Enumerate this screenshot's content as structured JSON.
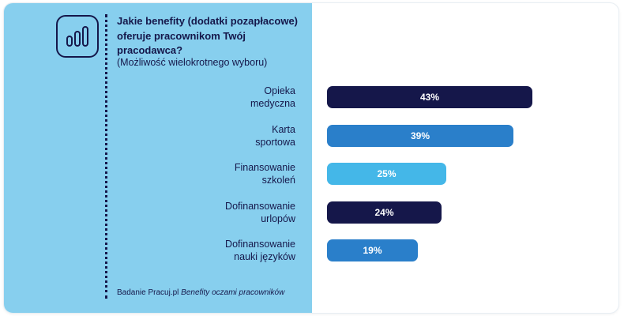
{
  "header": {
    "question": "Jakie benefity (dodatki pozapłacowe) oferuje pracownikom Twój pracodawca?",
    "note": "(Możliwość wielokrotnego wyboru)",
    "icon": "bar-chart-icon"
  },
  "source": {
    "prefix": "Badanie Pracuj.pl",
    "title": "Benefity oczami pracowników"
  },
  "colors": {
    "panel": "#87cfee",
    "text": "#15174a",
    "navy": "#15174a",
    "blue": "#2a7fca",
    "light": "#44b7e8"
  },
  "chart_data": {
    "type": "bar",
    "orientation": "horizontal",
    "categories": [
      [
        "Opieka",
        "medyczna"
      ],
      [
        "Karta",
        "sportowa"
      ],
      [
        "Finansowanie",
        "szkoleń"
      ],
      [
        "Dofinansowanie",
        "urlopów"
      ],
      [
        "Dofinansowanie",
        "nauki języków"
      ]
    ],
    "values": [
      43,
      39,
      25,
      24,
      19
    ],
    "value_labels": [
      "43%",
      "39%",
      "25%",
      "24%",
      "19%"
    ],
    "bar_colors": [
      "#15174a",
      "#2a7fca",
      "#44b7e8",
      "#15174a",
      "#2a7fca"
    ],
    "unit": "%",
    "xlim": [
      0,
      50
    ]
  }
}
